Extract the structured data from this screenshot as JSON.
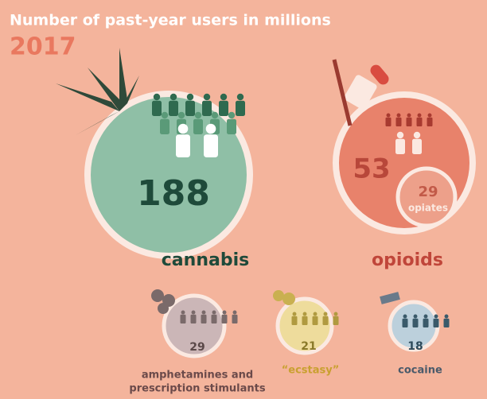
{
  "header": {
    "title": "Number of past-year users in millions",
    "year": "2017"
  },
  "items": [
    {
      "label": [
        "cannabis"
      ],
      "value": 188
    },
    {
      "label": [
        "opioids"
      ],
      "value": 53,
      "inset": {
        "value": 29,
        "label": "opiates"
      }
    },
    {
      "label": [
        "amphetamines and",
        "prescription stimulants"
      ],
      "value": 29
    },
    {
      "label": [
        "“ecstasy”"
      ],
      "value": 21
    },
    {
      "label": [
        "cocaine"
      ],
      "value": 18
    }
  ]
}
